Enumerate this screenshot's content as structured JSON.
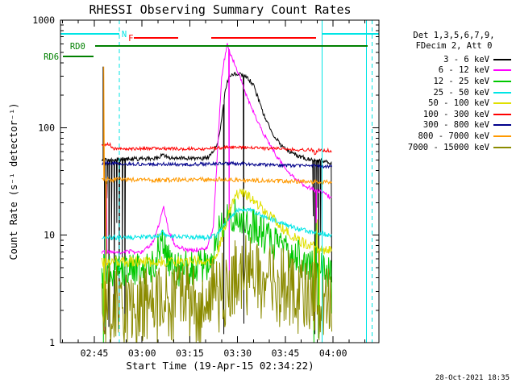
{
  "chart_data": {
    "type": "line",
    "title": "RHESSI Observing Summary Count Rates",
    "xlabel": "Start Time (19-Apr-15 02:34:22)",
    "ylabel": "Count Rate (s⁻¹ detector⁻¹)",
    "watermark": "28-Oct-2021 18:35",
    "y_scale": "log",
    "y_range": [
      1,
      1000
    ],
    "y_tick_labels": [
      "1",
      "10",
      "100",
      "1000"
    ],
    "x_range_minutes": [
      0,
      100
    ],
    "x_minor_step": 5,
    "x_minor_offset": 0.63,
    "x_major_ticks": [
      {
        "t": 10.63,
        "label": "02:45"
      },
      {
        "t": 25.63,
        "label": "03:00"
      },
      {
        "t": 40.63,
        "label": "03:15"
      },
      {
        "t": 55.63,
        "label": "03:30"
      },
      {
        "t": 70.63,
        "label": "03:45"
      },
      {
        "t": 85.63,
        "label": "04:00"
      }
    ],
    "legend_note": [
      "Det 1,3,5,6,7,9,",
      "FDecim 2, Att 0"
    ],
    "series": [
      {
        "name": "3 - 6 keV",
        "color": "#000000",
        "seed": 11,
        "noise": 0.02,
        "points": [
          [
            13,
            50
          ],
          [
            30,
            52
          ],
          [
            32,
            56
          ],
          [
            34,
            52
          ],
          [
            46,
            52
          ],
          [
            48,
            60
          ],
          [
            49.5,
            75
          ],
          [
            50.8,
            130
          ],
          [
            51.8,
            230
          ],
          [
            53,
            300
          ],
          [
            55,
            320
          ],
          [
            57,
            310
          ],
          [
            59,
            285
          ],
          [
            60.5,
            250
          ],
          [
            62,
            190
          ],
          [
            63.5,
            140
          ],
          [
            65,
            110
          ],
          [
            67,
            85
          ],
          [
            69,
            70
          ],
          [
            71,
            62
          ],
          [
            74,
            55
          ],
          [
            78,
            51
          ],
          [
            82,
            50
          ],
          [
            85,
            46
          ],
          [
            85.3,
            1
          ]
        ],
        "spikes": [
          [
            13.4,
            370
          ],
          [
            13.9,
            1.2
          ],
          [
            14.6,
            22
          ],
          [
            15.2,
            1.4
          ],
          [
            16,
            9
          ],
          [
            16.9,
            1.3
          ],
          [
            17.7,
            13
          ],
          [
            18.4,
            1.6
          ],
          [
            19.4,
            6
          ],
          [
            20.2,
            1.5
          ],
          [
            51.3,
            1.2
          ],
          [
            57.6,
            1.5
          ],
          [
            79.4,
            15
          ],
          [
            79.9,
            1.2
          ],
          [
            80.5,
            18
          ],
          [
            81.1,
            1.4
          ],
          [
            81.7,
            10
          ]
        ]
      },
      {
        "name": "6 - 12 keV",
        "color": "#ff00ff",
        "seed": 22,
        "noise": 0.02,
        "points": [
          [
            13,
            7
          ],
          [
            26,
            7
          ],
          [
            29,
            8.5
          ],
          [
            31,
            13
          ],
          [
            32.4,
            18
          ],
          [
            34,
            11
          ],
          [
            36,
            8
          ],
          [
            40,
            7.2
          ],
          [
            46,
            7.5
          ],
          [
            48,
            12
          ],
          [
            49.3,
            60
          ],
          [
            50.6,
            300
          ],
          [
            52.3,
            600
          ],
          [
            53.5,
            480
          ],
          [
            55,
            370
          ],
          [
            56.5,
            290
          ],
          [
            58,
            215
          ],
          [
            60,
            150
          ],
          [
            62.5,
            105
          ],
          [
            65,
            75
          ],
          [
            67.5,
            57
          ],
          [
            70,
            44
          ],
          [
            73,
            35
          ],
          [
            76,
            30
          ],
          [
            79,
            27
          ],
          [
            82,
            25
          ],
          [
            85.3,
            22
          ]
        ],
        "spikes": [
          [
            13.8,
            1.3
          ],
          [
            14.5,
            30
          ],
          [
            53,
            2.5
          ],
          [
            80.3,
            8
          ]
        ]
      },
      {
        "name": "12 - 25 keV",
        "color": "#00c800",
        "seed": 33,
        "noise": 0.17,
        "points": [
          [
            13,
            4.6
          ],
          [
            28,
            4.6
          ],
          [
            30,
            6.5
          ],
          [
            31.8,
            9
          ],
          [
            33.5,
            6
          ],
          [
            36,
            4.8
          ],
          [
            46,
            5
          ],
          [
            48,
            7
          ],
          [
            50,
            11
          ],
          [
            52,
            15
          ],
          [
            54,
            16
          ],
          [
            56.5,
            15
          ],
          [
            59,
            13
          ],
          [
            62,
            11
          ],
          [
            65,
            9.5
          ],
          [
            68,
            8
          ],
          [
            71,
            7
          ],
          [
            75,
            6
          ],
          [
            79,
            5.3
          ],
          [
            83,
            4.8
          ],
          [
            85,
            4
          ],
          [
            85.3,
            1
          ]
        ],
        "spikes": [
          [
            13.5,
            1
          ],
          [
            14.3,
            15
          ],
          [
            79.6,
            1
          ],
          [
            80.3,
            13
          ],
          [
            81,
            1.1
          ]
        ]
      },
      {
        "name": "25 - 50 keV",
        "color": "#00e5e5",
        "seed": 44,
        "noise": 0.022,
        "points": [
          [
            13,
            9.5
          ],
          [
            30,
            9.6
          ],
          [
            32,
            10.6
          ],
          [
            34,
            9.7
          ],
          [
            47,
            9.5
          ],
          [
            49,
            10
          ],
          [
            51,
            12
          ],
          [
            53,
            14.5
          ],
          [
            55.5,
            17
          ],
          [
            58,
            17.5
          ],
          [
            61,
            16.5
          ],
          [
            64,
            15
          ],
          [
            67,
            13.8
          ],
          [
            70,
            12.8
          ],
          [
            74,
            11.6
          ],
          [
            78,
            10.8
          ],
          [
            82,
            10.3
          ],
          [
            85.3,
            10
          ]
        ],
        "spikes": [
          [
            14,
            1.4
          ]
        ]
      },
      {
        "name": "50 - 100 keV",
        "color": "#e0e000",
        "seed": 55,
        "noise": 0.05,
        "points": [
          [
            13,
            5.7
          ],
          [
            47,
            5.7
          ],
          [
            49,
            6.5
          ],
          [
            51,
            10
          ],
          [
            53,
            17
          ],
          [
            55,
            23
          ],
          [
            56.5,
            25
          ],
          [
            58,
            24
          ],
          [
            60,
            22
          ],
          [
            62.5,
            19
          ],
          [
            65,
            16
          ],
          [
            67.5,
            13.5
          ],
          [
            70,
            11.5
          ],
          [
            73,
            9.8
          ],
          [
            76,
            8.6
          ],
          [
            79,
            7.8
          ],
          [
            82,
            7.3
          ],
          [
            85.3,
            7
          ]
        ],
        "spikes": [
          [
            13.7,
            1.2
          ],
          [
            79.7,
            1.3
          ],
          [
            80.6,
            14
          ],
          [
            81.3,
            1.2
          ]
        ]
      },
      {
        "name": "100 - 300 keV",
        "color": "#ff0000",
        "seed": 66,
        "noise": 0.015,
        "points": [
          [
            13,
            70
          ],
          [
            15.5,
            70
          ],
          [
            16.5,
            64
          ],
          [
            30,
            64
          ],
          [
            45,
            63.5
          ],
          [
            50,
            65
          ],
          [
            55,
            66
          ],
          [
            60,
            65
          ],
          [
            65,
            64
          ],
          [
            70,
            63
          ],
          [
            75,
            62.5
          ],
          [
            79,
            62
          ],
          [
            80,
            57
          ],
          [
            81,
            62
          ],
          [
            85.3,
            61
          ]
        ],
        "spikes": []
      },
      {
        "name": "300 - 800 keV",
        "color": "#00008b",
        "seed": 77,
        "noise": 0.016,
        "points": [
          [
            13,
            47
          ],
          [
            20,
            46
          ],
          [
            40,
            45.5
          ],
          [
            55,
            46.5
          ],
          [
            70,
            44.5
          ],
          [
            80,
            44
          ],
          [
            85.3,
            43.5
          ]
        ],
        "spikes": []
      },
      {
        "name": "800 - 7000 keV",
        "color": "#ff9900",
        "seed": 88,
        "noise": 0.02,
        "points": [
          [
            13,
            33
          ],
          [
            30,
            32.5
          ],
          [
            50,
            33
          ],
          [
            65,
            32
          ],
          [
            80,
            31.5
          ],
          [
            85.3,
            31
          ]
        ],
        "spikes": [
          [
            13.6,
            370
          ],
          [
            14.2,
            2
          ]
        ]
      },
      {
        "name": "7000 - 15000 keV",
        "color": "#8b8b00",
        "seed": 99,
        "noise": 0.38,
        "points": [
          [
            13,
            2.2
          ],
          [
            30,
            2.2
          ],
          [
            45,
            2.3
          ],
          [
            50,
            3
          ],
          [
            55,
            4.2
          ],
          [
            60,
            4.2
          ],
          [
            65,
            3.8
          ],
          [
            70,
            3.2
          ],
          [
            75,
            2.8
          ],
          [
            80,
            2.4
          ],
          [
            85.3,
            2
          ]
        ],
        "spikes": []
      }
    ],
    "flags": [
      {
        "label": "N",
        "color": "#00e5e5",
        "row_y": 42,
        "label_t": 19.2,
        "segments": [
          [
            0,
            18.5
          ],
          [
            82.2,
            100
          ]
        ]
      },
      {
        "label": "F",
        "color": "#ff0000",
        "row_y": 47,
        "label_t": 21.3,
        "segments": [
          [
            23,
            36.9
          ],
          [
            47.3,
            80.2
          ]
        ]
      },
      {
        "label": "RD0",
        "color": "#008000",
        "row_y": 57,
        "label_t": 3.0,
        "segments": [
          [
            10.9,
            96.4
          ]
        ]
      },
      {
        "label": "RD6",
        "color": "#008000",
        "row_y": 70,
        "label_t": -5.3,
        "segments": [
          [
            0.76,
            10.4
          ]
        ]
      }
    ],
    "vlines": [
      {
        "t": 18.5,
        "style": "dashed",
        "color": "#00e5e5"
      },
      {
        "t": 82.2,
        "style": "solid",
        "color": "#00e5e5"
      },
      {
        "t": 96.1,
        "style": "solid",
        "color": "#00e5e5"
      },
      {
        "t": 97.9,
        "style": "dashed",
        "color": "#00e5e5"
      }
    ]
  }
}
